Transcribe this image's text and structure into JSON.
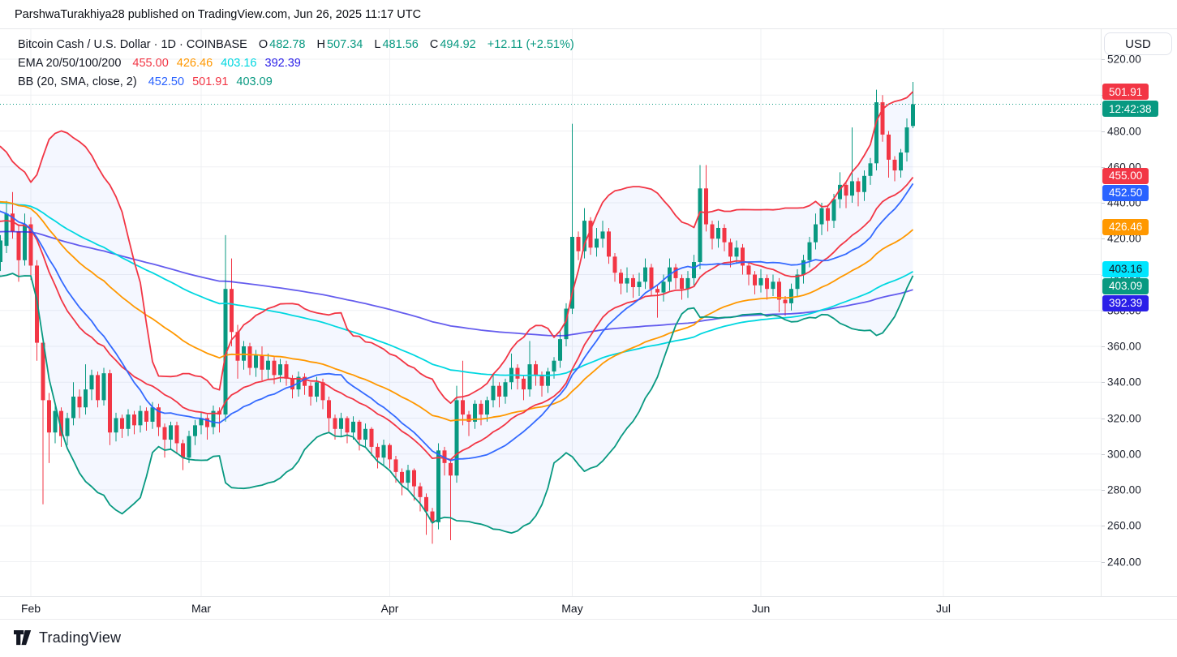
{
  "header": {
    "published_line": "ParshwaTurakhiya28 published on TradingView.com, Jun 26, 2025 11:17 UTC"
  },
  "toolbar": {
    "currency_label": "USD"
  },
  "legend": {
    "symbol": {
      "title": "Bitcoin Cash / U.S. Dollar · 1D · COINBASE",
      "o_label": "O",
      "o": "482.78",
      "h_label": "H",
      "h": "507.34",
      "l_label": "L",
      "l": "481.56",
      "c_label": "C",
      "c": "494.92",
      "change": "+12.11 (+2.51%)",
      "value_color": "#089981"
    },
    "ema": {
      "label": "EMA 20/50/100/200",
      "values": [
        {
          "text": "455.00",
          "color": "#F23645"
        },
        {
          "text": "426.46",
          "color": "#FF9800"
        },
        {
          "text": "403.16",
          "color": "#00D7E0"
        },
        {
          "text": "392.39",
          "color": "#2A1FE8"
        }
      ]
    },
    "bb": {
      "label": "BB (20, SMA, close, 2)",
      "values": [
        {
          "text": "452.50",
          "color": "#2962FF"
        },
        {
          "text": "501.91",
          "color": "#F23645"
        },
        {
          "text": "403.09",
          "color": "#089981"
        }
      ]
    }
  },
  "price_axis": {
    "tick_values": [
      520,
      500,
      480,
      460,
      440,
      420,
      400,
      380,
      360,
      340,
      320,
      300,
      280,
      260,
      240
    ],
    "badges": [
      {
        "name": "bb-upper-badge",
        "text": "501.91",
        "price": 501.91,
        "bg": "#F23645",
        "fg": "#FFFFFF"
      },
      {
        "name": "countdown-badge",
        "text": "12:42:38",
        "price": 494.92,
        "bg": "#089981",
        "fg": "#FFFFFF"
      },
      {
        "name": "ema20-badge",
        "text": "455.00",
        "price": 455.0,
        "bg": "#F23645",
        "fg": "#FFFFFF"
      },
      {
        "name": "bb-basis-badge",
        "text": "452.50",
        "price": 452.5,
        "bg": "#2962FF",
        "fg": "#FFFFFF"
      },
      {
        "name": "ema50-badge",
        "text": "426.46",
        "price": 426.46,
        "bg": "#FF9800",
        "fg": "#FFFFFF"
      },
      {
        "name": "ema100-badge",
        "text": "403.16",
        "price": 403.16,
        "bg": "#00E5FF",
        "fg": "#131722"
      },
      {
        "name": "bb-lower-badge",
        "text": "403.09",
        "price": 403.09,
        "bg": "#089981",
        "fg": "#FFFFFF"
      },
      {
        "name": "ema200-badge",
        "text": "392.39",
        "price": 392.39,
        "bg": "#2A1FE8",
        "fg": "#FFFFFF"
      }
    ]
  },
  "time_axis": {
    "months": [
      {
        "label": "Feb",
        "index": 26
      },
      {
        "label": "Mar",
        "index": 54
      },
      {
        "label": "Apr",
        "index": 85
      },
      {
        "label": "May",
        "index": 115
      },
      {
        "label": "Jun",
        "index": 146
      },
      {
        "label": "Jul",
        "index": 176
      }
    ]
  },
  "footer": {
    "brand": "TradingView"
  },
  "chart_data": {
    "type": "candlestick",
    "title": "Bitcoin Cash / U.S. Dollar",
    "exchange": "COINBASE",
    "interval": "1D",
    "last_ohlc": {
      "o": 482.78,
      "h": 507.34,
      "l": 481.56,
      "c": 494.92,
      "change": 12.11,
      "change_pct": 2.51
    },
    "current_price": 494.92,
    "current_price_line_color": "#089981",
    "y_axis": {
      "min": 240,
      "max": 520,
      "grid_step": 20
    },
    "x_axis": {
      "note": "daily candles, labels at month starts",
      "months_visible": [
        "Feb",
        "Mar",
        "Apr",
        "May",
        "Jun",
        "Jul"
      ]
    },
    "grid": true,
    "candle_colors": {
      "up": "#089981",
      "down": "#F23645"
    },
    "indicators": {
      "ema": [
        {
          "period": 20,
          "color": "#F23645",
          "seed": 450,
          "opacity": 1,
          "last_label": "455.00"
        },
        {
          "period": 50,
          "color": "#FF9800",
          "seed": 452,
          "opacity": 1,
          "last_label": "426.46"
        },
        {
          "period": 100,
          "color": "#00D7E0",
          "seed": 443,
          "opacity": 1,
          "last_label": "403.16"
        },
        {
          "period": 200,
          "color": "#2A1FE8",
          "seed": 421,
          "opacity": 0.72,
          "last_label": "392.39"
        }
      ],
      "bollinger": {
        "period": 20,
        "mult": 2,
        "basis_color": "#2962FF",
        "upper_color": "#F23645",
        "lower_color": "#089981",
        "fill": "rgba(41,98,255,0.05)",
        "basis_label": "452.50",
        "upper_label": "501.91",
        "lower_label": "403.09"
      }
    },
    "candles": {
      "first_visible_index": 21,
      "ohlc": [
        [
          440,
          448,
          436,
          445
        ],
        [
          445,
          455,
          442,
          452
        ],
        [
          452,
          463,
          449,
          460
        ],
        [
          460,
          469,
          456,
          466
        ],
        [
          466,
          468,
          453,
          458
        ],
        [
          458,
          462,
          446,
          450
        ],
        [
          450,
          465,
          448,
          462
        ],
        [
          462,
          464,
          451,
          455
        ],
        [
          455,
          458,
          442,
          446
        ],
        [
          446,
          450,
          434,
          438
        ],
        [
          438,
          444,
          426,
          430
        ],
        [
          430,
          446,
          428,
          442
        ],
        [
          442,
          445,
          430,
          434
        ],
        [
          434,
          438,
          422,
          426
        ],
        [
          426,
          430,
          414,
          418
        ],
        [
          418,
          422,
          407,
          412
        ],
        [
          412,
          424,
          409,
          420
        ],
        [
          420,
          431,
          417,
          428
        ],
        [
          428,
          430,
          412,
          416
        ],
        [
          416,
          419,
          405,
          410
        ],
        [
          410,
          418,
          404,
          414
        ],
        [
          407,
          422,
          402,
          419
        ],
        [
          416,
          441,
          412,
          434
        ],
        [
          434,
          446,
          420,
          424
        ],
        [
          424,
          428,
          396,
          408
        ],
        [
          408,
          434,
          405,
          428
        ],
        [
          428,
          432,
          397,
          405
        ],
        [
          405,
          408,
          352,
          362
        ],
        [
          362,
          365,
          272,
          330
        ],
        [
          330,
          334,
          295,
          312
        ],
        [
          312,
          327,
          306,
          324
        ],
        [
          324,
          326,
          304,
          310
        ],
        [
          310,
          323,
          305,
          320
        ],
        [
          320,
          340,
          316,
          332
        ],
        [
          332,
          336,
          320,
          326
        ],
        [
          326,
          350,
          322,
          336
        ],
        [
          336,
          347,
          330,
          344
        ],
        [
          344,
          346,
          326,
          330
        ],
        [
          330,
          348,
          327,
          345
        ],
        [
          345,
          347,
          305,
          312
        ],
        [
          312,
          323,
          307,
          320
        ],
        [
          320,
          322,
          309,
          314
        ],
        [
          314,
          325,
          310,
          322
        ],
        [
          322,
          324,
          311,
          316
        ],
        [
          316,
          327,
          312,
          324
        ],
        [
          324,
          326,
          313,
          318
        ],
        [
          318,
          329,
          314,
          326
        ],
        [
          326,
          328,
          310,
          315
        ],
        [
          315,
          317,
          298,
          308
        ],
        [
          308,
          318,
          303,
          316
        ],
        [
          316,
          318,
          300,
          306
        ],
        [
          306,
          308,
          291,
          298
        ],
        [
          298,
          313,
          295,
          310
        ],
        [
          310,
          319,
          305,
          316
        ],
        [
          316,
          323,
          311,
          320
        ],
        [
          320,
          322,
          308,
          315
        ],
        [
          315,
          327,
          311,
          324
        ],
        [
          324,
          326,
          312,
          322
        ],
        [
          322,
          422,
          318,
          392
        ],
        [
          392,
          409,
          360,
          368
        ],
        [
          368,
          372,
          342,
          352
        ],
        [
          352,
          363,
          347,
          360
        ],
        [
          360,
          362,
          344,
          348
        ],
        [
          348,
          358,
          343,
          355
        ],
        [
          355,
          360,
          341,
          347
        ],
        [
          347,
          356,
          342,
          352
        ],
        [
          352,
          354,
          339,
          344
        ],
        [
          344,
          353,
          340,
          350
        ],
        [
          350,
          352,
          338,
          342
        ],
        [
          342,
          344,
          331,
          336
        ],
        [
          336,
          346,
          332,
          343
        ],
        [
          343,
          345,
          333,
          338
        ],
        [
          338,
          340,
          327,
          332
        ],
        [
          332,
          343,
          329,
          340
        ],
        [
          340,
          342,
          325,
          330
        ],
        [
          330,
          332,
          312,
          320
        ],
        [
          320,
          322,
          308,
          314
        ],
        [
          314,
          323,
          310,
          320
        ],
        [
          320,
          321,
          306,
          312
        ],
        [
          312,
          321,
          308,
          318
        ],
        [
          318,
          319,
          302,
          308
        ],
        [
          308,
          317,
          304,
          314
        ],
        [
          314,
          315,
          299,
          304
        ],
        [
          304,
          306,
          292,
          298
        ],
        [
          298,
          308,
          294,
          305
        ],
        [
          305,
          306,
          292,
          297
        ],
        [
          297,
          299,
          284,
          290
        ],
        [
          290,
          292,
          277,
          284
        ],
        [
          284,
          294,
          280,
          291
        ],
        [
          291,
          292,
          274,
          282
        ],
        [
          282,
          284,
          268,
          276
        ],
        [
          276,
          278,
          255,
          268
        ],
        [
          268,
          270,
          250,
          262
        ],
        [
          262,
          306,
          258,
          302
        ],
        [
          302,
          304,
          288,
          295
        ],
        [
          295,
          297,
          252,
          288
        ],
        [
          288,
          338,
          284,
          330
        ],
        [
          330,
          352,
          316,
          322
        ],
        [
          322,
          324,
          310,
          318
        ],
        [
          318,
          330,
          314,
          328
        ],
        [
          328,
          330,
          316,
          322
        ],
        [
          322,
          332,
          318,
          330
        ],
        [
          330,
          344,
          326,
          338
        ],
        [
          338,
          340,
          326,
          332
        ],
        [
          332,
          342,
          328,
          340
        ],
        [
          340,
          356,
          336,
          348
        ],
        [
          348,
          350,
          336,
          342
        ],
        [
          342,
          344,
          330,
          336
        ],
        [
          336,
          363,
          332,
          350
        ],
        [
          350,
          352,
          338,
          344
        ],
        [
          344,
          346,
          332,
          338
        ],
        [
          338,
          348,
          334,
          346
        ],
        [
          346,
          354,
          342,
          352
        ],
        [
          352,
          368,
          348,
          364
        ],
        [
          364,
          384,
          360,
          381
        ],
        [
          381,
          484,
          378,
          421
        ],
        [
          421,
          424,
          408,
          413
        ],
        [
          413,
          437,
          409,
          430
        ],
        [
          430,
          432,
          411,
          415
        ],
        [
          415,
          426,
          410,
          420
        ],
        [
          420,
          430,
          415,
          424
        ],
        [
          424,
          426,
          406,
          410
        ],
        [
          410,
          412,
          396,
          401
        ],
        [
          401,
          403,
          389,
          395
        ],
        [
          395,
          404,
          390,
          398
        ],
        [
          398,
          400,
          387,
          393
        ],
        [
          393,
          401,
          388,
          396
        ],
        [
          396,
          409,
          392,
          404
        ],
        [
          404,
          406,
          388,
          392
        ],
        [
          392,
          394,
          376,
          390
        ],
        [
          390,
          400,
          385,
          396
        ],
        [
          396,
          409,
          391,
          404
        ],
        [
          404,
          406,
          392,
          398
        ],
        [
          398,
          400,
          386,
          392
        ],
        [
          392,
          402,
          387,
          398
        ],
        [
          398,
          411,
          393,
          407
        ],
        [
          407,
          461,
          403,
          448
        ],
        [
          448,
          461,
          424,
          428
        ],
        [
          428,
          430,
          414,
          420
        ],
        [
          420,
          430,
          415,
          426
        ],
        [
          426,
          428,
          413,
          418
        ],
        [
          418,
          420,
          404,
          410
        ],
        [
          410,
          419,
          406,
          415
        ],
        [
          415,
          417,
          400,
          405
        ],
        [
          405,
          407,
          394,
          400
        ],
        [
          400,
          402,
          389,
          394
        ],
        [
          394,
          403,
          390,
          398
        ],
        [
          398,
          400,
          386,
          392
        ],
        [
          392,
          400,
          388,
          396
        ],
        [
          396,
          398,
          379,
          386
        ],
        [
          386,
          388,
          377,
          384
        ],
        [
          384,
          395,
          380,
          392
        ],
        [
          392,
          403,
          388,
          400
        ],
        [
          400,
          411,
          395,
          408
        ],
        [
          408,
          421,
          404,
          418
        ],
        [
          418,
          434,
          414,
          428
        ],
        [
          428,
          440,
          422,
          437
        ],
        [
          437,
          439,
          424,
          430
        ],
        [
          430,
          445,
          426,
          442
        ],
        [
          442,
          457,
          437,
          450
        ],
        [
          450,
          452,
          437,
          444
        ],
        [
          444,
          482,
          440,
          452
        ],
        [
          452,
          454,
          438,
          446
        ],
        [
          446,
          458,
          441,
          455
        ],
        [
          455,
          465,
          450,
          462
        ],
        [
          462,
          503,
          458,
          496
        ],
        [
          496,
          500,
          474,
          478
        ],
        [
          478,
          480,
          454,
          464
        ],
        [
          464,
          466,
          452,
          458
        ],
        [
          458,
          470,
          454,
          468
        ],
        [
          468,
          487,
          463,
          482
        ],
        [
          482.78,
          507.34,
          481.56,
          494.92
        ]
      ]
    }
  }
}
